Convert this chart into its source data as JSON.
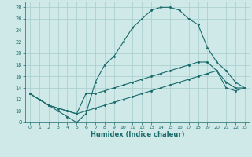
{
  "xlabel": "Humidex (Indice chaleur)",
  "xlim": [
    -0.5,
    23.5
  ],
  "ylim": [
    8,
    29
  ],
  "yticks": [
    8,
    10,
    12,
    14,
    16,
    18,
    20,
    22,
    24,
    26,
    28
  ],
  "xticks": [
    0,
    1,
    2,
    3,
    4,
    5,
    6,
    7,
    8,
    9,
    10,
    11,
    12,
    13,
    14,
    15,
    16,
    17,
    18,
    19,
    20,
    21,
    22,
    23
  ],
  "background_color": "#cfe8e8",
  "line_color": "#1a6b6b",
  "grid_color": "#a8cccc",
  "lines": [
    {
      "x": [
        0,
        1,
        2,
        3,
        4,
        5,
        6,
        7,
        8,
        9,
        10,
        11,
        12,
        13,
        14,
        15,
        16,
        17,
        18,
        19,
        20,
        21,
        22,
        23
      ],
      "y": [
        13,
        12,
        11,
        10,
        9,
        8,
        9.5,
        15,
        18,
        19.5,
        22,
        24.5,
        26,
        27.5,
        28,
        28,
        27.5,
        26,
        25,
        21,
        18.5,
        17,
        15,
        14
      ]
    },
    {
      "x": [
        0,
        1,
        2,
        3,
        4,
        5,
        6,
        7,
        8,
        9,
        10,
        11,
        12,
        13,
        14,
        15,
        16,
        17,
        18,
        19,
        20,
        21,
        22,
        23
      ],
      "y": [
        13,
        12,
        11,
        10.5,
        10,
        9.5,
        13,
        13,
        13.5,
        14,
        14.5,
        15,
        15.5,
        16,
        16.5,
        17,
        17.5,
        18,
        18.5,
        18.5,
        17,
        15,
        14,
        14
      ]
    },
    {
      "x": [
        0,
        1,
        2,
        3,
        4,
        5,
        6,
        7,
        8,
        9,
        10,
        11,
        12,
        13,
        14,
        15,
        16,
        17,
        18,
        19,
        20,
        21,
        22,
        23
      ],
      "y": [
        13,
        12,
        11,
        10.5,
        10,
        9.5,
        10,
        10.5,
        11,
        11.5,
        12,
        12.5,
        13,
        13.5,
        14,
        14.5,
        15,
        15.5,
        16,
        16.5,
        17,
        14,
        13.5,
        14
      ]
    }
  ]
}
